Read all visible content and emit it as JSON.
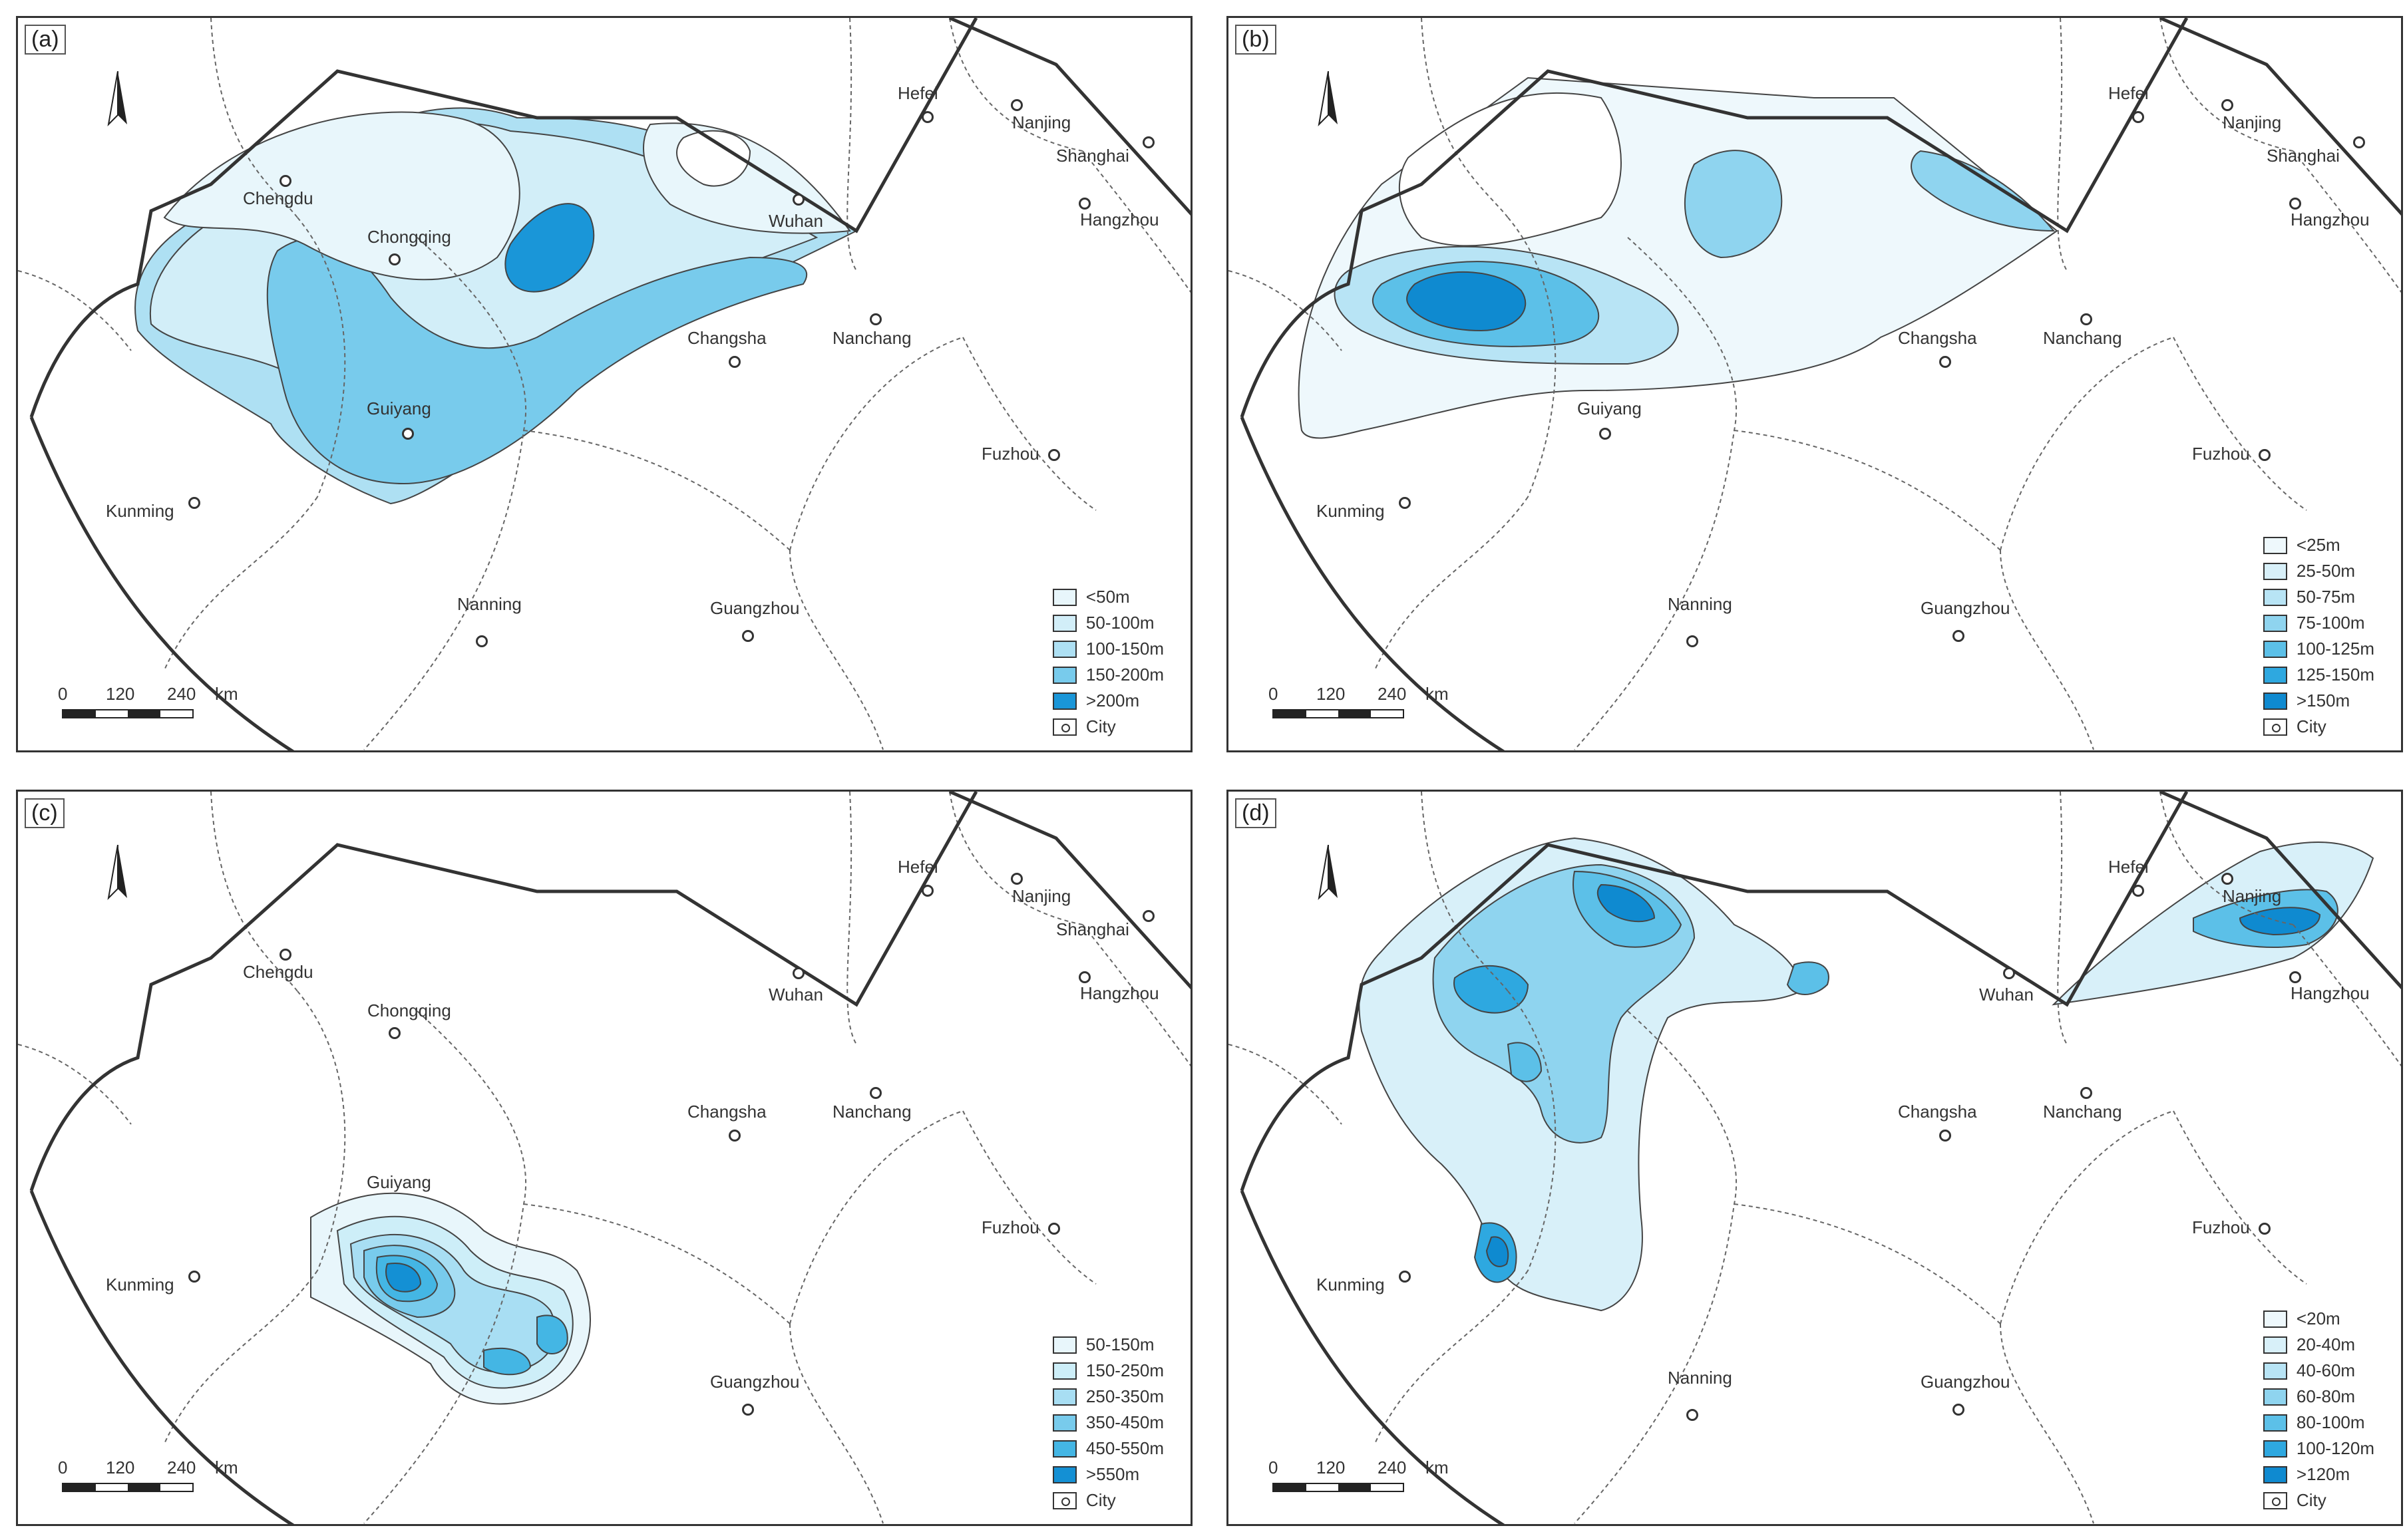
{
  "panels": [
    {
      "id": "a",
      "label": "(a)",
      "legend": [
        {
          "label": "<50m",
          "color": "#e8f6fb"
        },
        {
          "label": "50-100m",
          "color": "#d2eef8"
        },
        {
          "label": "100-150m",
          "color": "#aee0f3"
        },
        {
          "label": "150-200m",
          "color": "#78cbec"
        },
        {
          "label": ">200m",
          "color": "#1a96d8"
        },
        {
          "label": "City",
          "color": "#ffffff"
        }
      ]
    },
    {
      "id": "b",
      "label": "(b)",
      "legend": [
        {
          "label": "<25m",
          "color": "#eef8fc"
        },
        {
          "label": "25-50m",
          "color": "#d8f0f9"
        },
        {
          "label": "50-75m",
          "color": "#b8e4f5"
        },
        {
          "label": "75-100m",
          "color": "#8fd4ef"
        },
        {
          "label": "100-125m",
          "color": "#5cc0e8"
        },
        {
          "label": "125-150m",
          "color": "#2ea8e0"
        },
        {
          "label": ">150m",
          "color": "#0f8ad0"
        },
        {
          "label": "City",
          "color": "#ffffff"
        }
      ]
    },
    {
      "id": "c",
      "label": "(c)",
      "legend": [
        {
          "label": "50-150m",
          "color": "#e8f6fb"
        },
        {
          "label": "150-250m",
          "color": "#cdeef8"
        },
        {
          "label": "250-350m",
          "color": "#a8def3"
        },
        {
          "label": "350-450m",
          "color": "#78cbec"
        },
        {
          "label": "450-550m",
          "color": "#44b6e4"
        },
        {
          "label": ">550m",
          "color": "#1490d4"
        },
        {
          "label": "City",
          "color": "#ffffff"
        }
      ]
    },
    {
      "id": "d",
      "label": "(d)",
      "legend": [
        {
          "label": "<20m",
          "color": "#eef8fc"
        },
        {
          "label": "20-40m",
          "color": "#d8f0f9"
        },
        {
          "label": "40-60m",
          "color": "#b8e4f5"
        },
        {
          "label": "60-80m",
          "color": "#8fd4ef"
        },
        {
          "label": "80-100m",
          "color": "#5cc0e8"
        },
        {
          "label": "100-120m",
          "color": "#2ea8e0"
        },
        {
          "label": ">120m",
          "color": "#0f8ad0"
        },
        {
          "label": "City",
          "color": "#ffffff"
        }
      ]
    }
  ],
  "cities": {
    "chengdu": "Chengdu",
    "chongqing": "Chongqing",
    "guiyang": "Guiyang",
    "kunming": "Kunming",
    "nanning": "Nanning",
    "guangzhou": "Guangzhou",
    "changsha": "Changsha",
    "nanchang": "Nanchang",
    "wuhan": "Wuhan",
    "hefei": "Hefei",
    "nanjing": "Nanjing",
    "shanghai": "Shanghai",
    "hangzhou": "Hangzhou",
    "fuzhou": "Fuzhou"
  },
  "scale": {
    "t0": "0",
    "t1": "120",
    "t2": "240",
    "unit": "km"
  }
}
